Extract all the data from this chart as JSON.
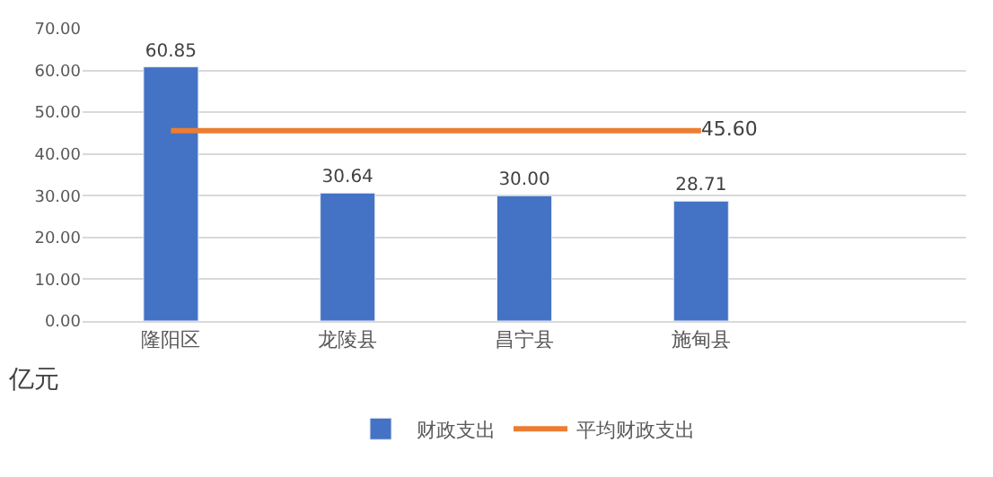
{
  "chart_data": {
    "type": "bar",
    "ylabel": "亿元",
    "categories": [
      "隆阳区",
      "龙陵县",
      "昌宁县",
      "施甸县",
      null
    ],
    "series": [
      {
        "name": "财政支出",
        "color": "#4472c4",
        "values": [
          60.85,
          30.64,
          30.0,
          28.71,
          null
        ],
        "value_labels": [
          "60.85",
          "30.64",
          "30.00",
          "28.71",
          null
        ]
      },
      {
        "name": "平均财政支出",
        "type": "line",
        "color": "#ed7d31",
        "values": [
          45.6,
          45.6,
          45.6,
          45.6,
          null
        ],
        "value_labels": [
          null,
          null,
          null,
          "45.60",
          null
        ],
        "marker": "none",
        "line_style": "solid"
      }
    ],
    "ylim": [
      0,
      70
    ],
    "yticks": [
      {
        "value": 0,
        "label": "0.00"
      },
      {
        "value": 10,
        "label": "10.00"
      },
      {
        "value": 20,
        "label": "20.00"
      },
      {
        "value": 30,
        "label": "30.00"
      },
      {
        "value": 40,
        "label": "40.00"
      },
      {
        "value": 50,
        "label": "50.00"
      },
      {
        "value": 60,
        "label": "60.00"
      },
      {
        "value": 70,
        "label": "70.00"
      }
    ],
    "grid": "y",
    "legend": "bottom"
  }
}
